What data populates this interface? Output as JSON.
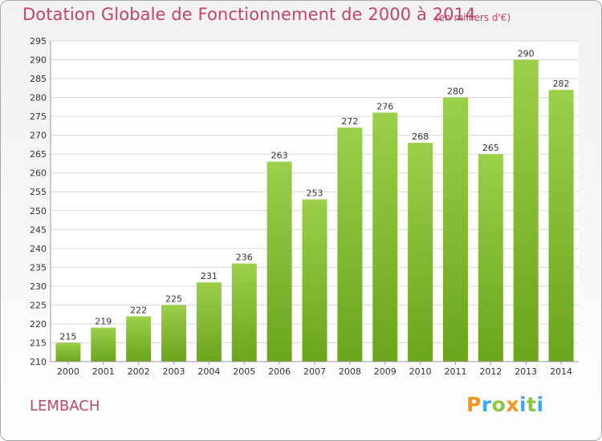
{
  "header": {
    "title": "Dotation Globale de Fonctionnement de 2000 à 2014",
    "unit_note": "(en milliers d'€)"
  },
  "footer": {
    "commune": "LEMBACH",
    "brand": "Proxiti",
    "brand_colors": [
      "#f7941d",
      "#3fa9f5",
      "#8cc63f",
      "#f7941d",
      "#3fa9f5",
      "#8cc63f",
      "#3fa9f5"
    ]
  },
  "chart_data": {
    "type": "bar",
    "title": "Dotation Globale de Fonctionnement de 2000 à 2014",
    "subtitle": "(en milliers d'€)",
    "xlabel": "",
    "ylabel": "",
    "categories": [
      "2000",
      "2001",
      "2002",
      "2003",
      "2004",
      "2005",
      "2006",
      "2007",
      "2008",
      "2009",
      "2010",
      "2011",
      "2012",
      "2013",
      "2014"
    ],
    "values": [
      215,
      219,
      222,
      225,
      231,
      236,
      263,
      253,
      272,
      276,
      268,
      280,
      265,
      290,
      282
    ],
    "ylim": [
      210,
      295
    ],
    "yticks": [
      210,
      215,
      220,
      225,
      230,
      235,
      240,
      245,
      250,
      255,
      260,
      265,
      270,
      275,
      280,
      285,
      290,
      295
    ],
    "grid": true,
    "legend": "none",
    "colors": {
      "bar_light": "#9ccf4a",
      "bar_dark": "#6aa51c",
      "grid": "#d7d7d7",
      "text": "#c1436e"
    }
  }
}
